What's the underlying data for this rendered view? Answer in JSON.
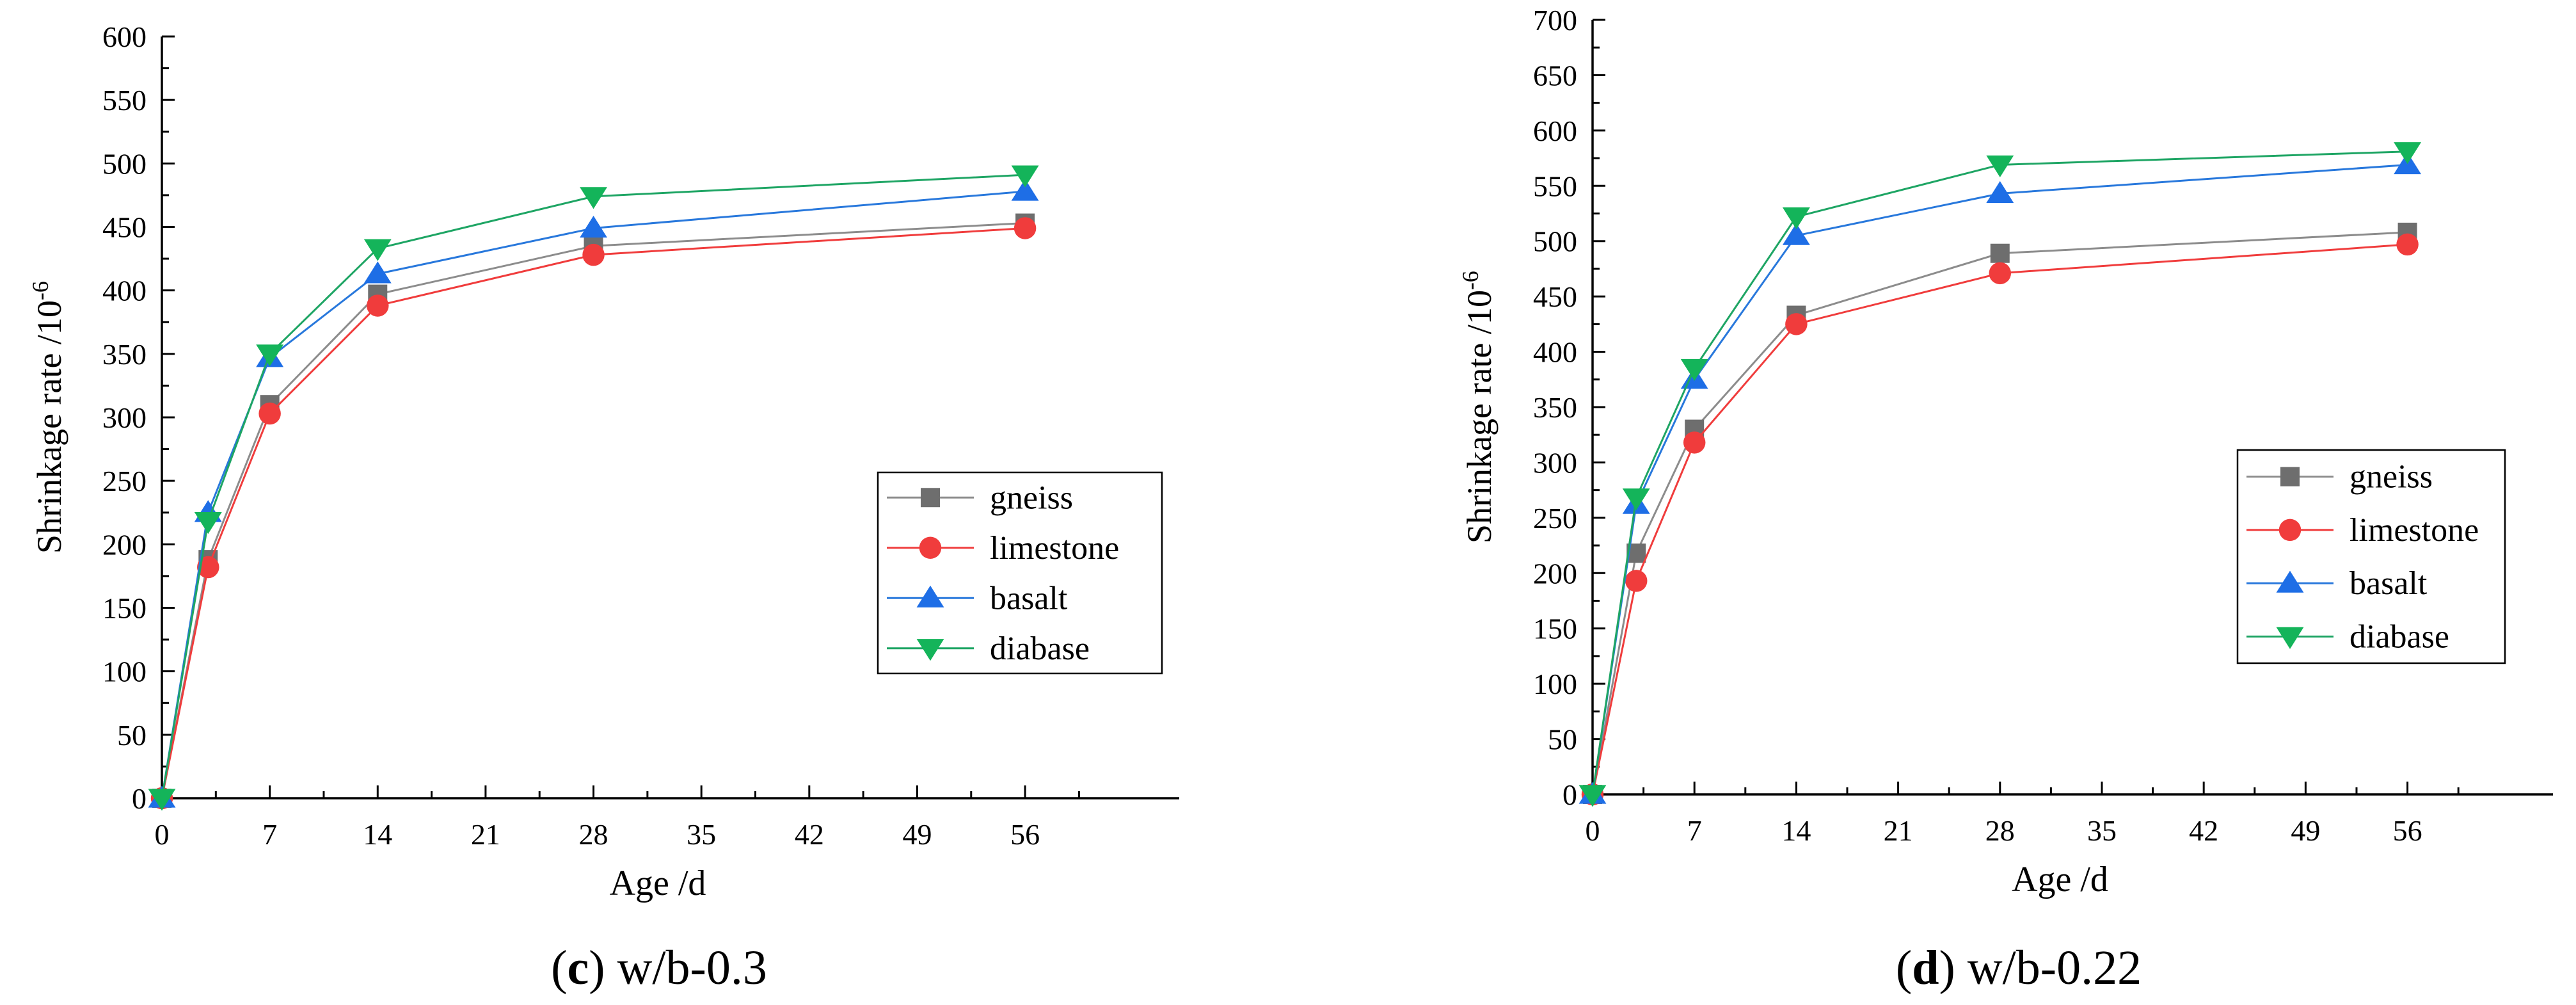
{
  "chart_data": [
    {
      "type": "line",
      "panel_letter": "c",
      "caption_rest": " w/b-0.3",
      "xlabel": "Age /d",
      "ylabel_main": "Shrinkage rate /10",
      "ylabel_sup": "-6",
      "x_ticks": [
        0,
        7,
        14,
        21,
        28,
        35,
        42,
        49,
        56
      ],
      "x_tick_labels": [
        "0",
        "7",
        "14",
        "21",
        "28",
        "35",
        "42",
        "49",
        "56"
      ],
      "xlim": [
        0,
        66
      ],
      "ylim": [
        0,
        600
      ],
      "y_ticks": [
        0,
        50,
        100,
        150,
        200,
        250,
        300,
        350,
        400,
        450,
        500,
        550,
        600
      ],
      "y_tick_labels": [
        "0",
        "50",
        "100",
        "150",
        "200",
        "250",
        "300",
        "350",
        "400",
        "450",
        "500",
        "550",
        "600"
      ],
      "legend_position": "right",
      "x": [
        0,
        3,
        7,
        14,
        28,
        56
      ],
      "series": [
        {
          "name": "gneiss",
          "marker": "square",
          "values": [
            0,
            188,
            310,
            397,
            435,
            453
          ]
        },
        {
          "name": "limestone",
          "marker": "circle",
          "values": [
            0,
            182,
            303,
            388,
            428,
            449
          ]
        },
        {
          "name": "basalt",
          "marker": "triangle-up",
          "values": [
            0,
            225,
            347,
            413,
            449,
            478
          ]
        },
        {
          "name": "diabase",
          "marker": "triangle-down",
          "values": [
            0,
            218,
            350,
            433,
            474,
            491
          ]
        }
      ]
    },
    {
      "type": "line",
      "panel_letter": "d",
      "caption_rest": " w/b-0.22",
      "xlabel": "Age /d",
      "ylabel_main": "Shrinkage rate /10",
      "ylabel_sup": "-6",
      "x_ticks": [
        0,
        7,
        14,
        21,
        28,
        35,
        42,
        49,
        56
      ],
      "x_tick_labels": [
        "0",
        "7",
        "14",
        "21",
        "28",
        "35",
        "42",
        "49",
        "56"
      ],
      "xlim": [
        0,
        66
      ],
      "ylim": [
        0,
        700
      ],
      "y_ticks": [
        0,
        50,
        100,
        150,
        200,
        250,
        300,
        350,
        400,
        450,
        500,
        550,
        600,
        650,
        700
      ],
      "y_tick_labels": [
        "0",
        "50",
        "100",
        "150",
        "200",
        "250",
        "300",
        "350",
        "400",
        "450",
        "500",
        "550",
        "600",
        "650",
        "700"
      ],
      "legend_position": "right",
      "x": [
        0,
        3,
        7,
        14,
        28,
        56
      ],
      "series": [
        {
          "name": "gneiss",
          "marker": "square",
          "values": [
            0,
            218,
            330,
            433,
            489,
            508
          ]
        },
        {
          "name": "limestone",
          "marker": "circle",
          "values": [
            0,
            193,
            318,
            425,
            471,
            497
          ]
        },
        {
          "name": "basalt",
          "marker": "triangle-up",
          "values": [
            0,
            262,
            375,
            505,
            543,
            569
          ]
        },
        {
          "name": "diabase",
          "marker": "triangle-down",
          "values": [
            0,
            268,
            385,
            522,
            569,
            581
          ]
        }
      ]
    }
  ],
  "colors": {
    "gneiss_line": "#8c8c8c",
    "gneiss_marker": "#6e6e6e",
    "limestone_line": "#f03c3c",
    "limestone_marker": "#f03c3c",
    "basalt_line": "#2878dc",
    "basalt_marker": "#1e6ee6",
    "diabase_line": "#1ea564",
    "diabase_marker": "#14b45a",
    "axis": "#000000"
  }
}
